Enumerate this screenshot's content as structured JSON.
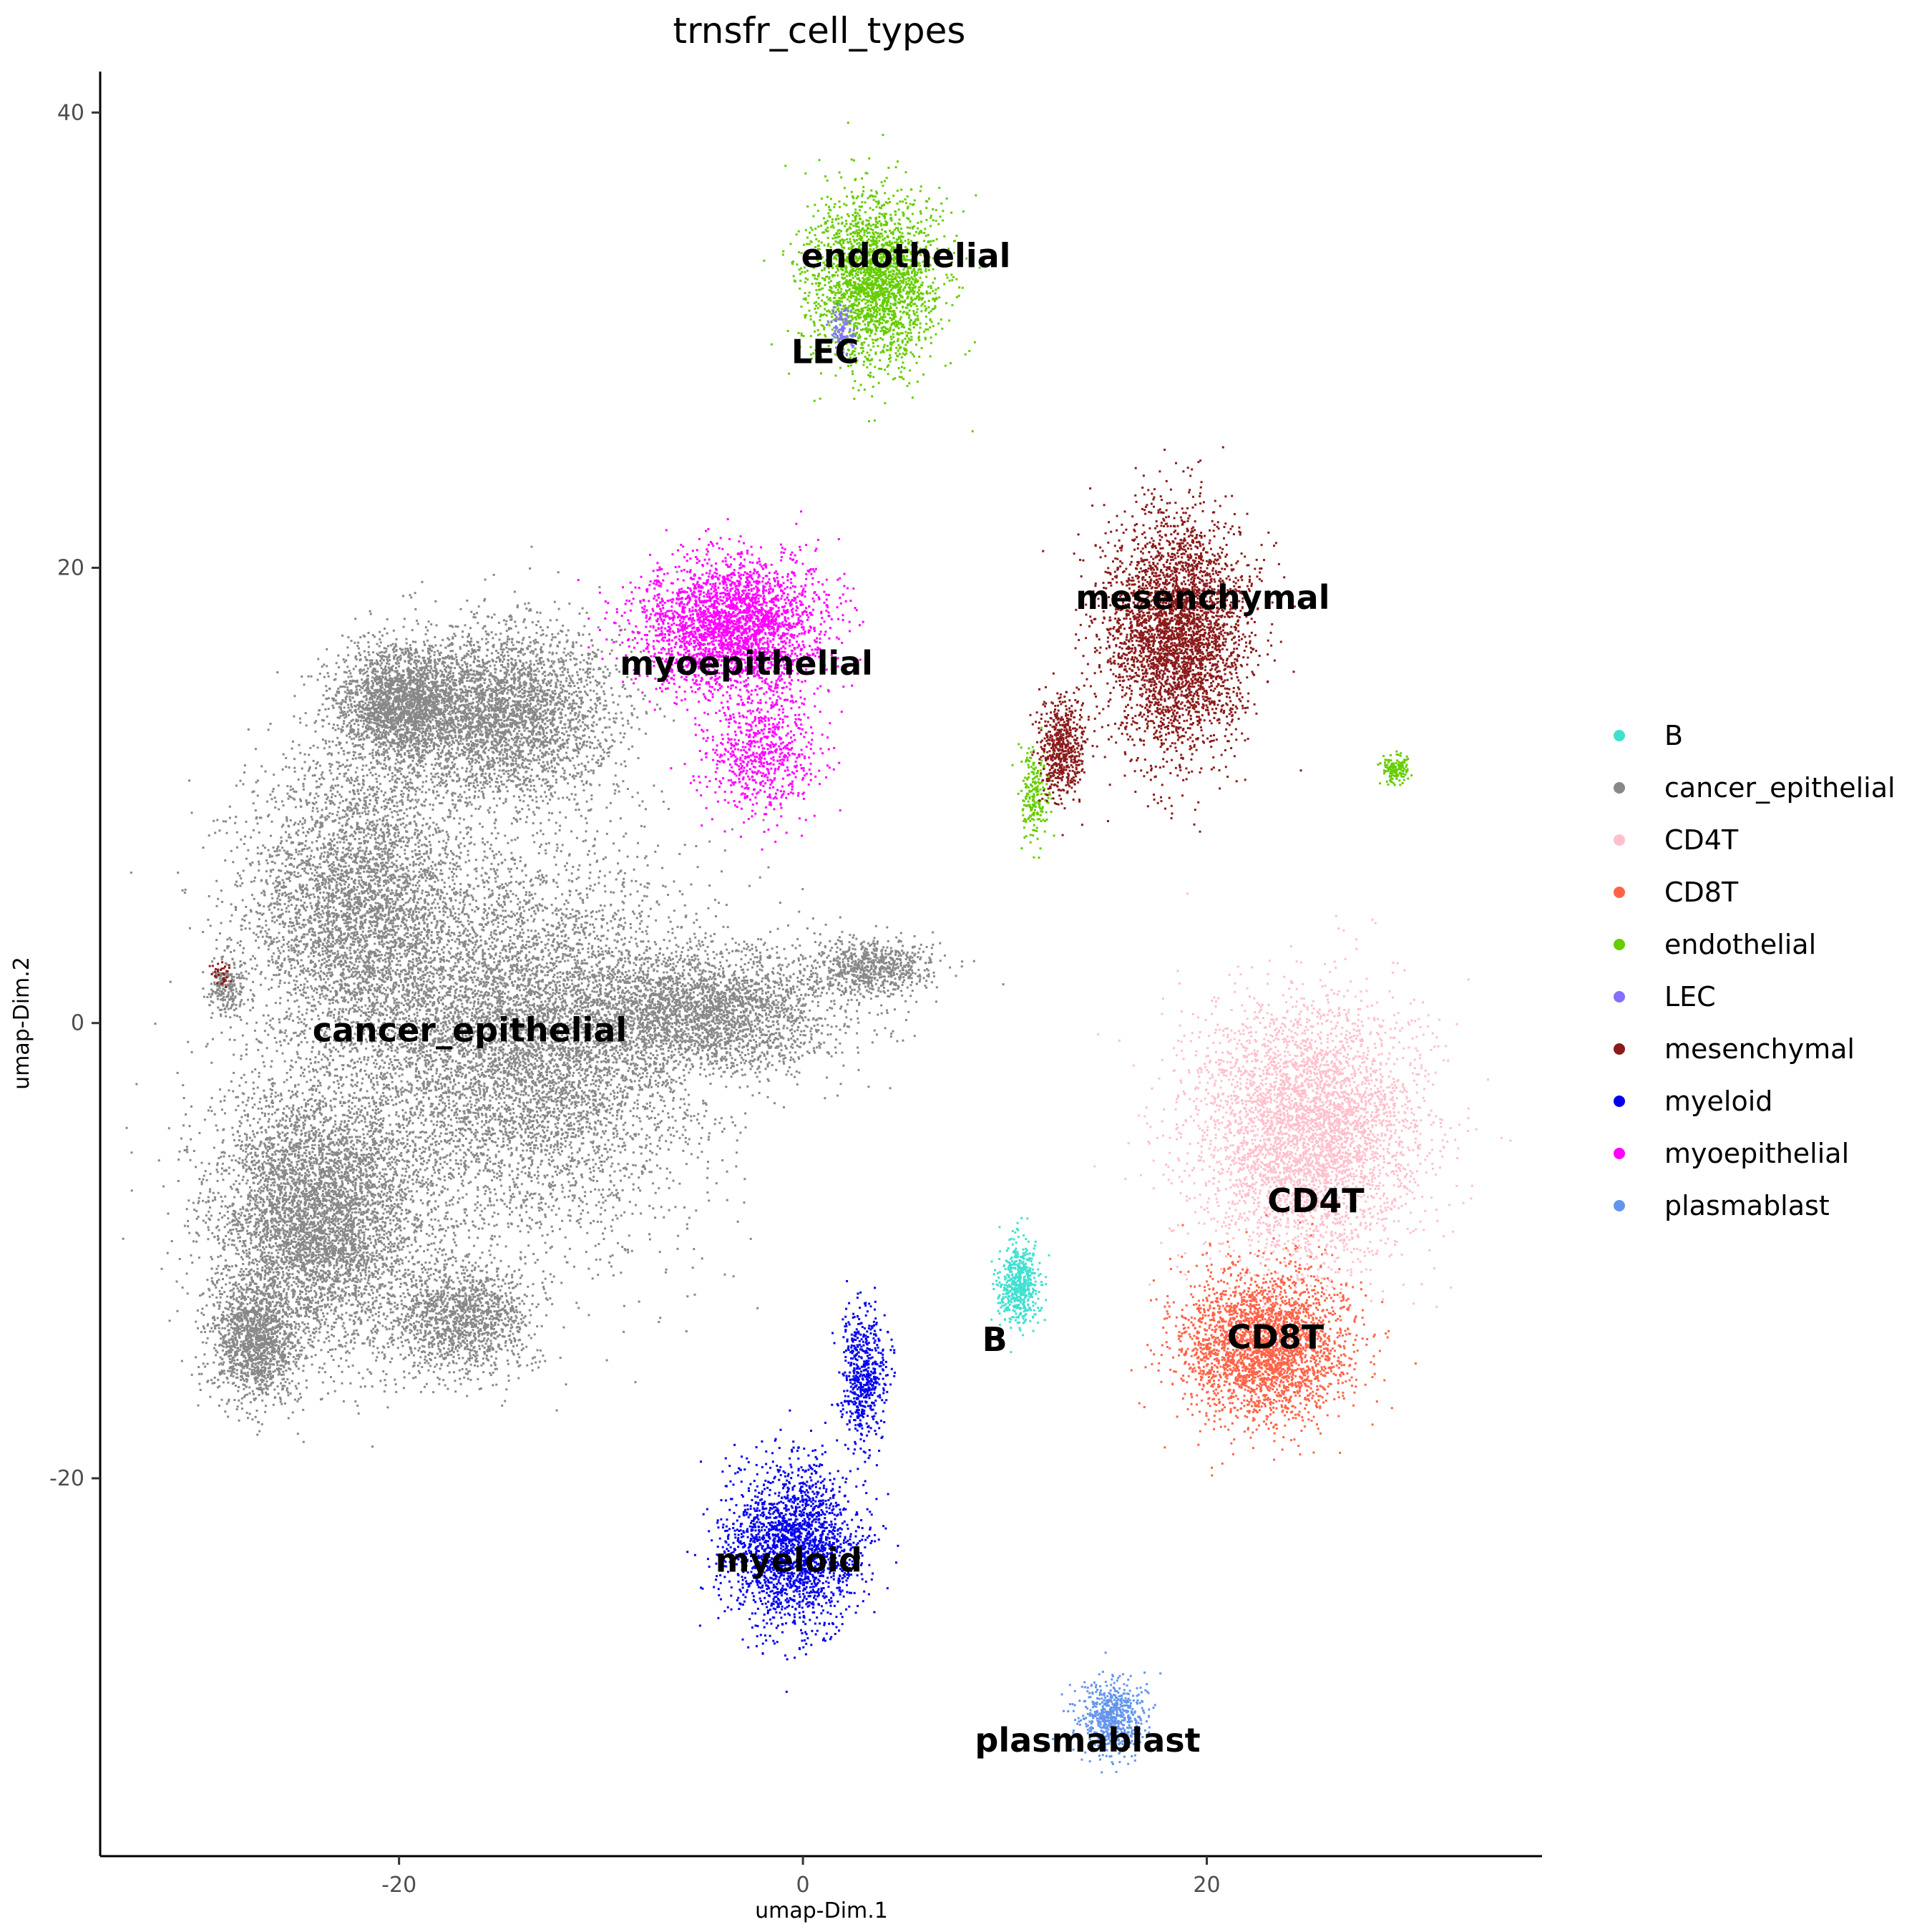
{
  "chart_data": {
    "type": "scatter",
    "title": "trnsfr_cell_types",
    "xlabel": "umap-Dim.1",
    "ylabel": "umap-Dim.2",
    "xlim": [
      -34.8,
      36.6
    ],
    "ylim": [
      -36.6,
      41.8
    ],
    "x_ticks": [
      -20,
      0,
      20
    ],
    "x_tick_labels": [
      "-20",
      "0",
      "20"
    ],
    "y_ticks": [
      -20,
      0,
      20,
      40
    ],
    "y_tick_labels": [
      "-20",
      "0",
      "20",
      "40"
    ],
    "grid": false,
    "legend_position": "right",
    "series": [
      {
        "name": "B",
        "color": "#40E0D0",
        "label": "B",
        "label_pos": [
          9.5,
          -13.9
        ]
      },
      {
        "name": "cancer_epithelial",
        "color": "#888888",
        "label": "cancer_epithelial",
        "label_pos": [
          -16.5,
          -0.3
        ]
      },
      {
        "name": "CD4T",
        "color": "#FFC0CB",
        "label": "CD4T",
        "label_pos": [
          25.4,
          -7.8
        ]
      },
      {
        "name": "CD8T",
        "color": "#FF6347",
        "label": "CD8T",
        "label_pos": [
          23.4,
          -13.8
        ]
      },
      {
        "name": "endothelial",
        "color": "#66CD00",
        "label": "endothelial",
        "label_pos": [
          5.1,
          33.7
        ]
      },
      {
        "name": "LEC",
        "color": "#8470FF",
        "label": "LEC",
        "label_pos": [
          1.1,
          29.5
        ]
      },
      {
        "name": "mesenchymal",
        "color": "#8B1A1A",
        "label": "mesenchymal",
        "label_pos": [
          19.8,
          18.7
        ]
      },
      {
        "name": "myeloid",
        "color": "#0000EE",
        "label": "myeloid",
        "label_pos": [
          -0.7,
          -23.6
        ]
      },
      {
        "name": "myoepithelial",
        "color": "#FF00FF",
        "label": "myoepithelial",
        "label_pos": [
          -2.8,
          15.8
        ]
      },
      {
        "name": "plasmablast",
        "color": "#6495ED",
        "label": "plasmablast",
        "label_pos": [
          14.1,
          -31.5
        ]
      }
    ],
    "clusters": [
      {
        "cell_type": "cancer_epithelial",
        "center": [
          -22.0,
          5.0
        ],
        "spread": [
          4.5,
          5.5
        ],
        "weight": 6
      },
      {
        "cell_type": "cancer_epithelial",
        "center": [
          -14.0,
          -1.0
        ],
        "spread": [
          7.0,
          6.5
        ],
        "weight": 10
      },
      {
        "cell_type": "cancer_epithelial",
        "center": [
          -24.0,
          -8.5
        ],
        "spread": [
          4.2,
          4.5
        ],
        "weight": 7
      },
      {
        "cell_type": "cancer_epithelial",
        "center": [
          -15.0,
          13.5
        ],
        "spread": [
          4.5,
          3.2
        ],
        "weight": 5
      },
      {
        "cell_type": "cancer_epithelial",
        "center": [
          -20.0,
          14.0
        ],
        "spread": [
          2.5,
          2.0
        ],
        "weight": 3
      },
      {
        "cell_type": "cancer_epithelial",
        "center": [
          -5.0,
          0.5
        ],
        "spread": [
          5.5,
          2.2
        ],
        "weight": 4
      },
      {
        "cell_type": "cancer_epithelial",
        "center": [
          -27.0,
          -14.0
        ],
        "spread": [
          1.8,
          2.2
        ],
        "weight": 2
      },
      {
        "cell_type": "cancer_epithelial",
        "center": [
          -17.0,
          -13.0
        ],
        "spread": [
          3.0,
          2.0
        ],
        "weight": 2
      },
      {
        "cell_type": "cancer_epithelial",
        "center": [
          3.5,
          2.5
        ],
        "spread": [
          2.5,
          1.0
        ],
        "weight": 1
      },
      {
        "cell_type": "cancer_epithelial",
        "center": [
          -28.5,
          1.5
        ],
        "spread": [
          0.8,
          1.0
        ],
        "weight": 0.3
      },
      {
        "cell_type": "myoepithelial",
        "center": [
          -3.5,
          17.5
        ],
        "spread": [
          3.6,
          2.3
        ],
        "weight": 4
      },
      {
        "cell_type": "myoepithelial",
        "center": [
          -2.0,
          12.0
        ],
        "spread": [
          2.2,
          2.2
        ],
        "weight": 1
      },
      {
        "cell_type": "endothelial",
        "center": [
          3.5,
          32.5
        ],
        "spread": [
          2.6,
          2.9
        ],
        "weight": 3.5
      },
      {
        "cell_type": "endothelial",
        "center": [
          29.3,
          11.2
        ],
        "spread": [
          0.5,
          0.5
        ],
        "weight": 0.2
      },
      {
        "cell_type": "endothelial",
        "center": [
          11.5,
          10.0
        ],
        "spread": [
          0.6,
          1.6
        ],
        "weight": 0.3
      },
      {
        "cell_type": "LEC",
        "center": [
          1.9,
          30.5
        ],
        "spread": [
          0.5,
          0.9
        ],
        "weight": 0.15
      },
      {
        "cell_type": "mesenchymal",
        "center": [
          18.5,
          17.0
        ],
        "spread": [
          2.8,
          4.2
        ],
        "weight": 5
      },
      {
        "cell_type": "mesenchymal",
        "center": [
          12.8,
          12.0
        ],
        "spread": [
          0.9,
          1.8
        ],
        "weight": 0.8
      },
      {
        "cell_type": "mesenchymal",
        "center": [
          -28.8,
          2.2
        ],
        "spread": [
          0.4,
          0.4
        ],
        "weight": 0.05
      },
      {
        "cell_type": "CD4T",
        "center": [
          25.0,
          -4.8
        ],
        "spread": [
          4.5,
          4.5
        ],
        "weight": 6
      },
      {
        "cell_type": "CD8T",
        "center": [
          22.8,
          -14.2
        ],
        "spread": [
          3.3,
          2.6
        ],
        "weight": 4
      },
      {
        "cell_type": "B",
        "center": [
          10.7,
          -11.5
        ],
        "spread": [
          0.8,
          1.5
        ],
        "weight": 0.8
      },
      {
        "cell_type": "myeloid",
        "center": [
          -0.5,
          -23.0
        ],
        "spread": [
          2.6,
          2.9
        ],
        "weight": 3
      },
      {
        "cell_type": "myeloid",
        "center": [
          3.0,
          -15.5
        ],
        "spread": [
          0.9,
          2.3
        ],
        "weight": 0.8
      },
      {
        "cell_type": "plasmablast",
        "center": [
          15.3,
          -30.5
        ],
        "spread": [
          1.3,
          1.3
        ],
        "weight": 0.9
      }
    ]
  }
}
